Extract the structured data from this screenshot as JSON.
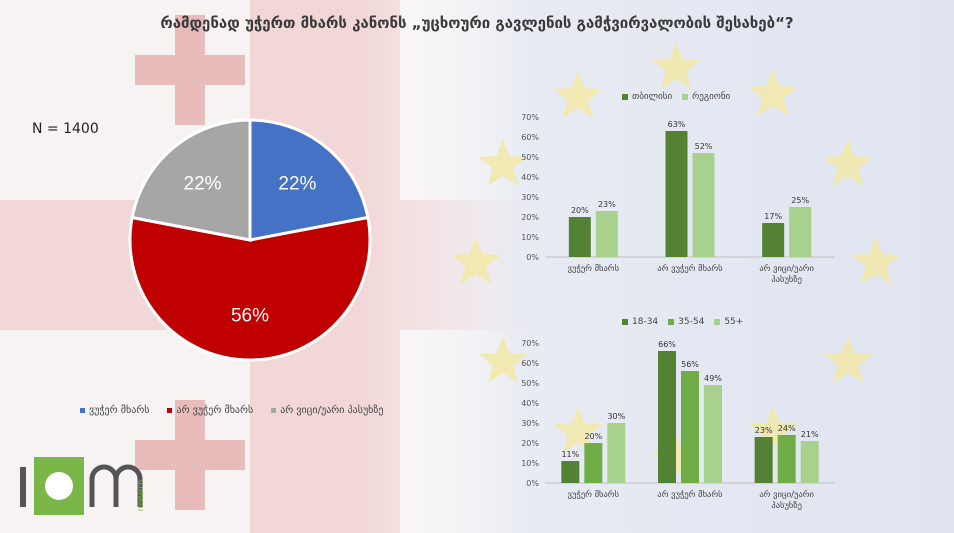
{
  "title": "რამდენად უჭერთ მხარს კანონს „უცხოური გავლენის გამჭვირვალობის შესახებ“?",
  "sample": "N = 1400",
  "colors": {
    "support": "#4472c4",
    "oppose": "#c00000",
    "dontknow": "#a6a6a6",
    "dark_green": "#548235",
    "mid_green": "#70ad47",
    "light_green": "#a9d18e"
  },
  "logo": {
    "letters": "iom",
    "subtitle": "research"
  },
  "chart_data": [
    {
      "type": "pie",
      "title": "",
      "categories": [
        "ვუჭერ მხარს",
        "არ ვუჭერ მხარს",
        "არ ვიცი/უარი პასუხზე"
      ],
      "values": [
        22,
        56,
        22
      ],
      "labels": [
        "22%",
        "56%",
        "22%"
      ],
      "legend_position": "bottom"
    },
    {
      "type": "bar",
      "categories": [
        "ვუჭერ მხარს",
        "არ ვუჭერ მხარს",
        "არ ვიცი/უარი პასუხზე"
      ],
      "category_lines": [
        [
          "ვუჭერ მხარს"
        ],
        [
          "არ ვუჭერ მხარს"
        ],
        [
          "არ ვიცი/უარი",
          "პასუხზე"
        ]
      ],
      "series": [
        {
          "name": "თბილისი",
          "values": [
            20,
            63,
            17
          ],
          "labels": [
            "20%",
            "63%",
            "17%"
          ]
        },
        {
          "name": "რეგიონი",
          "values": [
            23,
            52,
            25
          ],
          "labels": [
            "23%",
            "52%",
            "25%"
          ]
        }
      ],
      "ylim": [
        0,
        70
      ],
      "yticks": [
        "0%",
        "10%",
        "20%",
        "30%",
        "40%",
        "50%",
        "60%",
        "70%"
      ],
      "legend_position": "top"
    },
    {
      "type": "bar",
      "categories": [
        "ვუჭერ მხარს",
        "არ ვუჭერ მხარს",
        "არ ვიცი/უარი პასუხზე"
      ],
      "category_lines": [
        [
          "ვუჭერ მხარს"
        ],
        [
          "არ ვუჭერ მხარს"
        ],
        [
          "არ ვიცი/უარი",
          "პასუხზე"
        ]
      ],
      "series": [
        {
          "name": "18-34",
          "values": [
            11,
            66,
            23
          ],
          "labels": [
            "11%",
            "66%",
            "23%"
          ]
        },
        {
          "name": "35-54",
          "values": [
            20,
            56,
            24
          ],
          "labels": [
            "20%",
            "56%",
            "24%"
          ]
        },
        {
          "name": "55+",
          "values": [
            30,
            49,
            21
          ],
          "labels": [
            "30%",
            "49%",
            "21%"
          ]
        }
      ],
      "ylim": [
        0,
        70
      ],
      "yticks": [
        "0%",
        "10%",
        "20%",
        "30%",
        "40%",
        "50%",
        "60%",
        "70%"
      ],
      "legend_position": "top"
    }
  ]
}
